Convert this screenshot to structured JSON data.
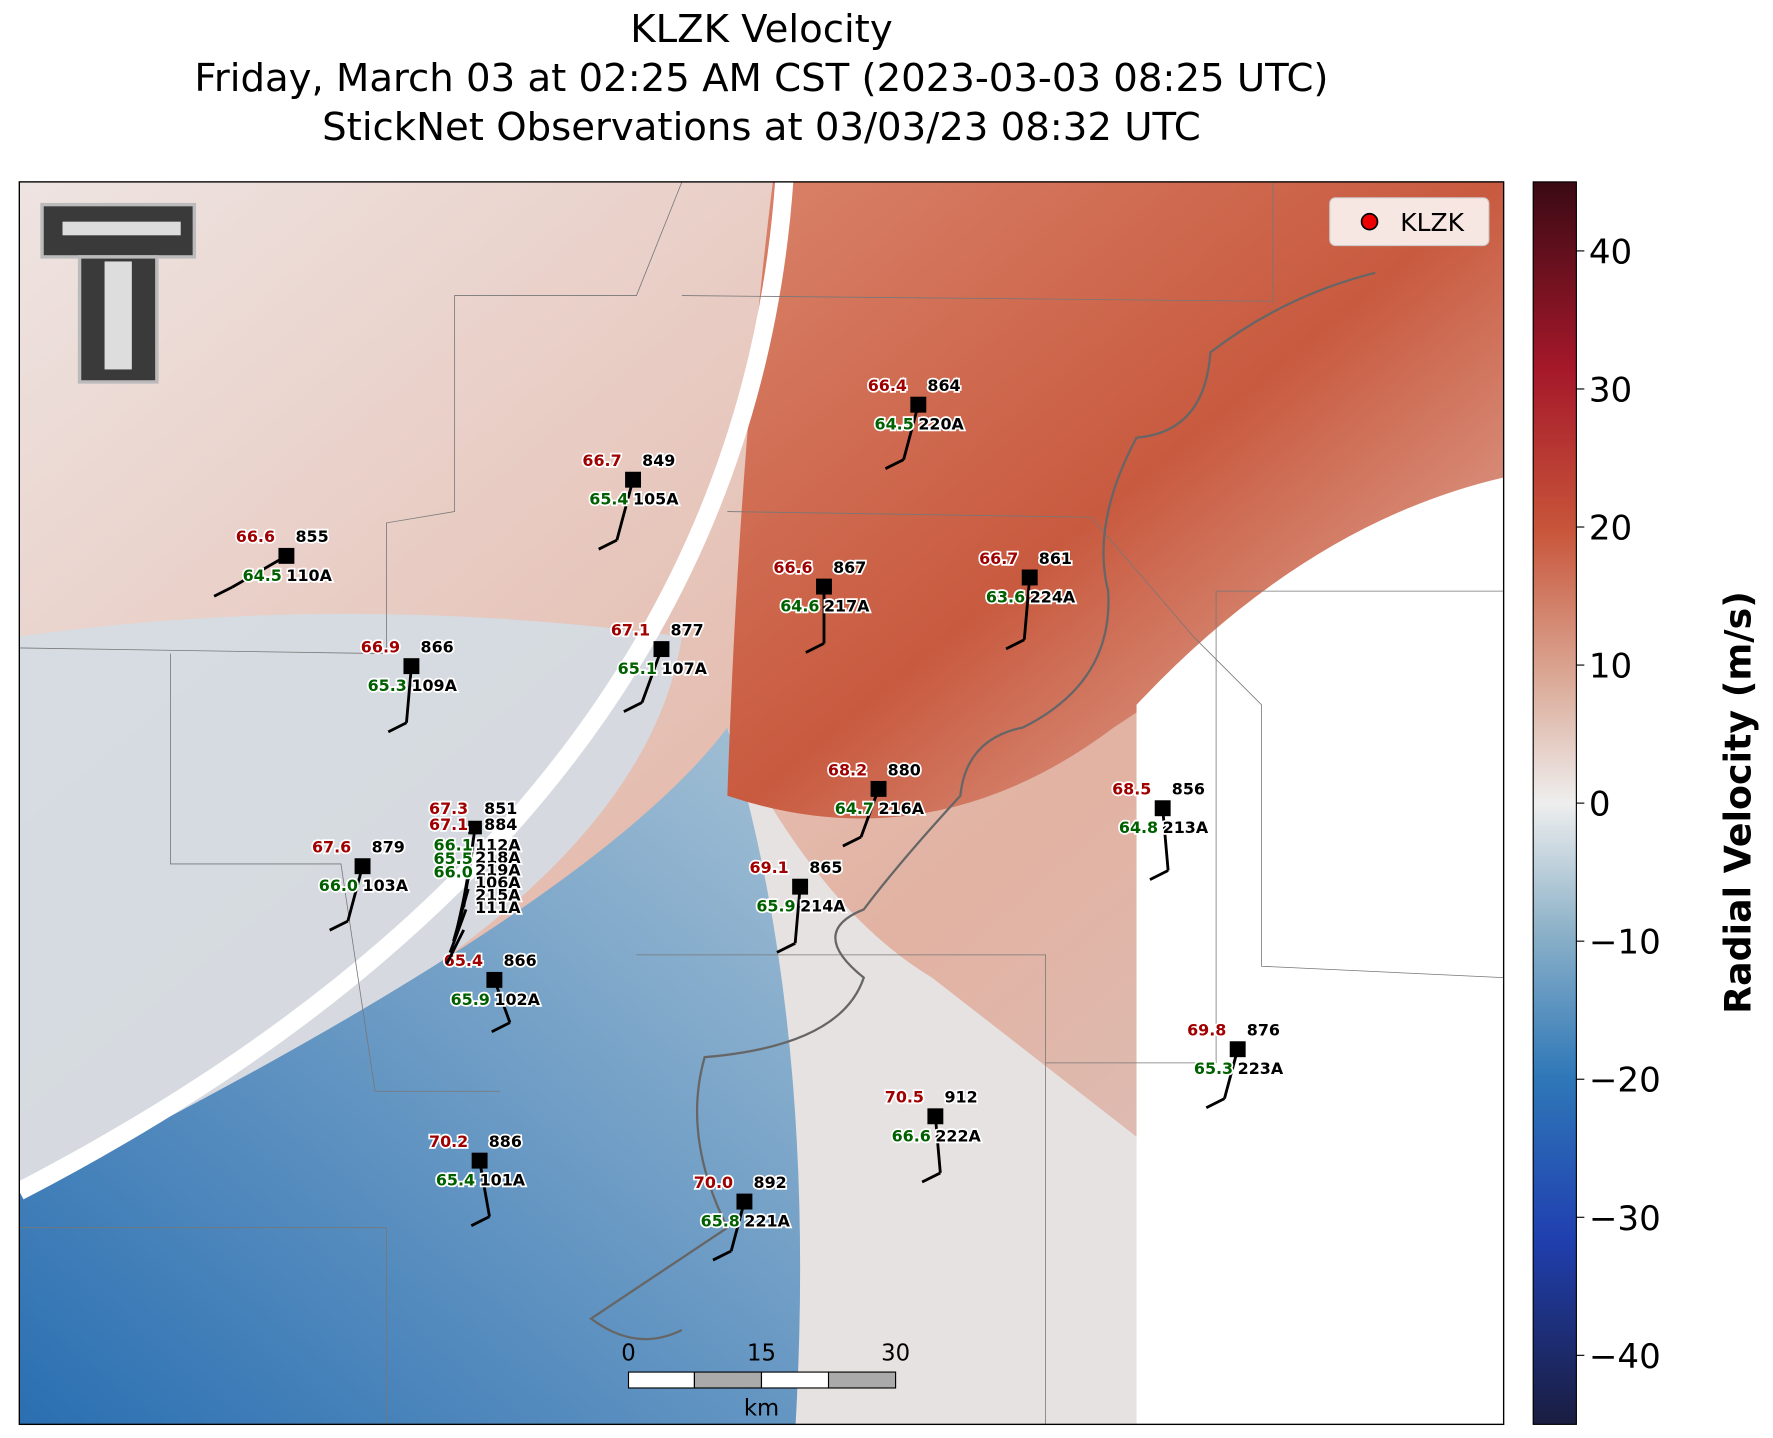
{
  "header": {
    "title": "KLZK Velocity",
    "subtitle": "Friday, March 03 at 02:25 AM CST (2023-03-03 08:25 UTC)",
    "observations": "StickNet Observations at 03/03/23 08:32 UTC"
  },
  "legend": {
    "label": "KLZK"
  },
  "colorbar": {
    "label": "Radial Velocity (m/s)",
    "lim": [
      -45,
      45
    ],
    "ticks": [
      {
        "value": -40,
        "label": "−40"
      },
      {
        "value": -30,
        "label": "−30"
      },
      {
        "value": -20,
        "label": "−20"
      },
      {
        "value": -10,
        "label": "−10"
      },
      0,
      10,
      20,
      30,
      40
    ]
  },
  "scale_bar": {
    "ticks": [
      "0",
      "15",
      "30"
    ],
    "unit": "km"
  },
  "stations": [
    {
      "temperature": "66.4",
      "dewpoint": "64.5",
      "pressure": "864",
      "id": "220A"
    },
    {
      "temperature": "66.7",
      "dewpoint": "65.4",
      "pressure": "849",
      "id": "105A"
    },
    {
      "temperature": "66.6",
      "dewpoint": "64.5",
      "pressure": "855",
      "id": "110A"
    },
    {
      "temperature": "66.6",
      "dewpoint": "64.6",
      "pressure": "867",
      "id": "217A"
    },
    {
      "temperature": "66.7",
      "dewpoint": "63.6",
      "pressure": "861",
      "id": "224A"
    },
    {
      "temperature": "67.1",
      "dewpoint": "65.1",
      "pressure": "877",
      "id": "107A"
    },
    {
      "temperature": "66.9",
      "dewpoint": "65.3",
      "pressure": "866",
      "id": "109A"
    },
    {
      "temperature": "68.2",
      "dewpoint": "64.7",
      "pressure": "880",
      "id": "216A"
    },
    {
      "temperature": "68.5",
      "dewpoint": "64.8",
      "pressure": "856",
      "id": "213A"
    },
    {
      "temperature": "67.6",
      "dewpoint": "66.0",
      "pressure": "879",
      "id": "103A"
    },
    {
      "temperature": "69.1",
      "dewpoint": "65.9",
      "pressure": "865",
      "id": "214A"
    },
    {
      "temperature": "65.4",
      "dewpoint": "65.9",
      "pressure": "866",
      "id": "102A"
    },
    {
      "temperature": "69.8",
      "dewpoint": "65.3",
      "pressure": "876",
      "id": "223A"
    },
    {
      "temperature": "70.5",
      "dewpoint": "66.6",
      "pressure": "912",
      "id": "222A"
    },
    {
      "temperature": "70.2",
      "dewpoint": "65.4",
      "pressure": "886",
      "id": "101A"
    },
    {
      "temperature": "70.0",
      "dewpoint": "65.8",
      "pressure": "892",
      "id": "221A"
    }
  ],
  "cluster": {
    "temperatures": [
      "67.3",
      "67.1"
    ],
    "pressures": [
      "851",
      "884"
    ],
    "dewpoints": [
      "66.1",
      "65.5",
      "66.0"
    ],
    "ids": [
      "112A",
      "218A",
      "219A",
      "106A",
      "215A",
      "111A"
    ]
  }
}
